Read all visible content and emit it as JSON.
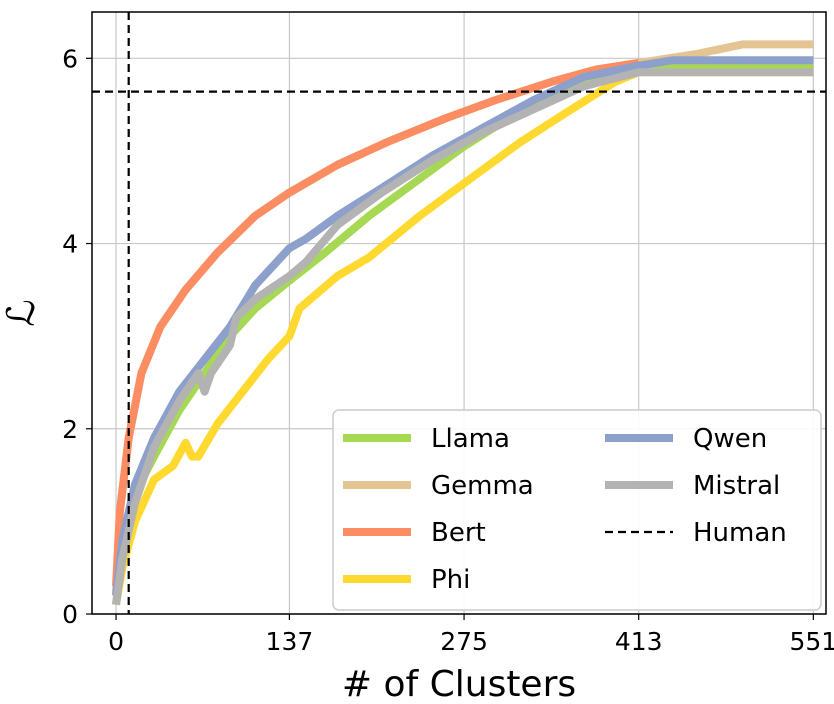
{
  "chart_data": {
    "type": "line",
    "title": "",
    "xlabel": "# of Clusters",
    "ylabel": "ℒ",
    "xlim": [
      -19,
      561
    ],
    "ylim": [
      0,
      6.5
    ],
    "xticks": [
      0,
      137,
      275,
      413,
      551
    ],
    "xtick_labels": [
      "0",
      "137",
      "275",
      "413",
      "551"
    ],
    "yticks": [
      0,
      2,
      4,
      6
    ],
    "ytick_labels": [
      "0",
      "2",
      "4",
      "6"
    ],
    "grid": true,
    "legend_position": "bottom-right",
    "legend_columns": 2,
    "series": [
      {
        "name": "Llama",
        "color": "#a6d854",
        "x": [
          0,
          5,
          15,
          30,
          50,
          70,
          90,
          110,
          137,
          165,
          200,
          240,
          275,
          310,
          350,
          380,
          413,
          551
        ],
        "y": [
          0.1,
          0.7,
          1.3,
          1.7,
          2.2,
          2.6,
          3.0,
          3.3,
          3.6,
          3.9,
          4.3,
          4.7,
          5.05,
          5.35,
          5.65,
          5.8,
          5.9,
          5.9
        ]
      },
      {
        "name": "Gemma",
        "color": "#e5c494",
        "x": [
          0,
          3,
          10,
          20,
          35,
          55,
          80,
          110,
          137,
          175,
          215,
          260,
          300,
          345,
          380,
          413,
          460,
          495,
          551
        ],
        "y": [
          0.2,
          1.1,
          1.9,
          2.6,
          3.1,
          3.5,
          3.9,
          4.3,
          4.55,
          4.85,
          5.1,
          5.35,
          5.55,
          5.75,
          5.88,
          5.95,
          6.05,
          6.15,
          6.15
        ]
      },
      {
        "name": "Bert",
        "color": "#fc8d62",
        "x": [
          0,
          3,
          10,
          20,
          35,
          55,
          80,
          110,
          137,
          175,
          215,
          260,
          300,
          345,
          380,
          413
        ],
        "y": [
          0.3,
          1.1,
          1.9,
          2.6,
          3.1,
          3.5,
          3.9,
          4.3,
          4.55,
          4.85,
          5.1,
          5.35,
          5.55,
          5.75,
          5.88,
          5.95
        ]
      },
      {
        "name": "Phi",
        "color": "#ffd92f",
        "x": [
          0,
          5,
          15,
          30,
          45,
          55,
          60,
          65,
          80,
          100,
          120,
          137,
          145,
          175,
          200,
          240,
          275,
          320,
          360,
          395,
          413,
          551
        ],
        "y": [
          0.1,
          0.5,
          1.0,
          1.45,
          1.6,
          1.85,
          1.7,
          1.7,
          2.05,
          2.4,
          2.75,
          3.0,
          3.3,
          3.65,
          3.85,
          4.3,
          4.65,
          5.1,
          5.45,
          5.75,
          5.85,
          5.85
        ]
      },
      {
        "name": "Qwen",
        "color": "#8da0cb",
        "x": [
          0,
          5,
          15,
          30,
          50,
          70,
          90,
          110,
          137,
          150,
          175,
          210,
          250,
          290,
          330,
          370,
          413,
          440,
          551
        ],
        "y": [
          0.2,
          0.8,
          1.4,
          1.9,
          2.4,
          2.75,
          3.1,
          3.55,
          3.95,
          4.05,
          4.3,
          4.6,
          4.95,
          5.25,
          5.55,
          5.8,
          5.92,
          5.98,
          5.98
        ]
      },
      {
        "name": "Mistral",
        "color": "#b3b3b3",
        "x": [
          0,
          5,
          15,
          30,
          50,
          65,
          70,
          75,
          90,
          95,
          110,
          137,
          150,
          175,
          210,
          250,
          290,
          330,
          370,
          413,
          551
        ],
        "y": [
          0.1,
          0.6,
          1.2,
          1.8,
          2.3,
          2.6,
          2.4,
          2.6,
          2.9,
          3.2,
          3.4,
          3.65,
          3.8,
          4.2,
          4.55,
          4.9,
          5.2,
          5.45,
          5.7,
          5.85,
          5.85
        ]
      }
    ],
    "reference_lines": [
      {
        "name": "Human",
        "style": "dashed",
        "color": "#000000",
        "axis": "y",
        "value": 5.64
      },
      {
        "name": "Human",
        "style": "dashed",
        "color": "#000000",
        "axis": "x",
        "value": 10
      }
    ],
    "legend": [
      "Llama",
      "Qwen",
      "Gemma",
      "Mistral",
      "Bert",
      "Human",
      "Phi"
    ]
  }
}
